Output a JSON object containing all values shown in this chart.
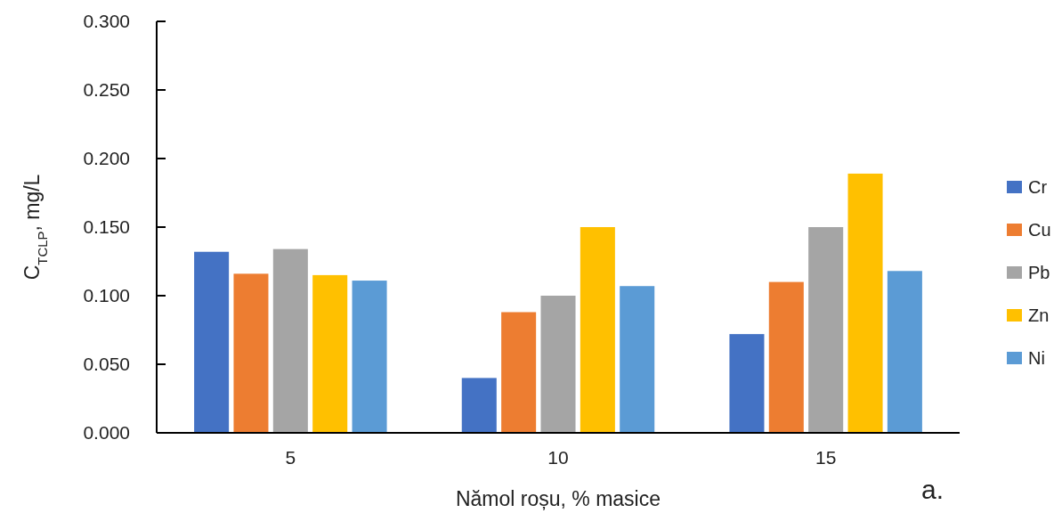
{
  "chart_data": {
    "type": "bar",
    "xlabel": "Nămol roșu, % masice",
    "ylabel": "C$_{TCLP}$, mg/L",
    "categories": [
      "5",
      "10",
      "15"
    ],
    "series": [
      {
        "name": "Cr",
        "color": "#4472c4",
        "values": [
          0.132,
          0.04,
          0.072
        ]
      },
      {
        "name": "Cu",
        "color": "#ed7d31",
        "values": [
          0.116,
          0.088,
          0.11
        ]
      },
      {
        "name": "Pb",
        "color": "#a5a5a5",
        "values": [
          0.134,
          0.1,
          0.15
        ]
      },
      {
        "name": "Zn",
        "color": "#ffc000",
        "values": [
          0.115,
          0.15,
          0.189
        ]
      },
      {
        "name": "Ni",
        "color": "#5b9bd5",
        "values": [
          0.111,
          0.107,
          0.118
        ]
      }
    ],
    "ylim": [
      0,
      0.3
    ],
    "yticks": [
      {
        "value": 0,
        "label": "0.000"
      },
      {
        "value": 0.05,
        "label": "0.050"
      },
      {
        "value": 0.1,
        "label": "0.100"
      },
      {
        "value": 0.15,
        "label": "0.150"
      },
      {
        "value": 0.2,
        "label": "0.200"
      },
      {
        "value": 0.25,
        "label": "0.250"
      },
      {
        "value": 0.3,
        "label": "0.300"
      }
    ],
    "grid": false,
    "legend": "right",
    "annotations": [
      "a."
    ]
  }
}
